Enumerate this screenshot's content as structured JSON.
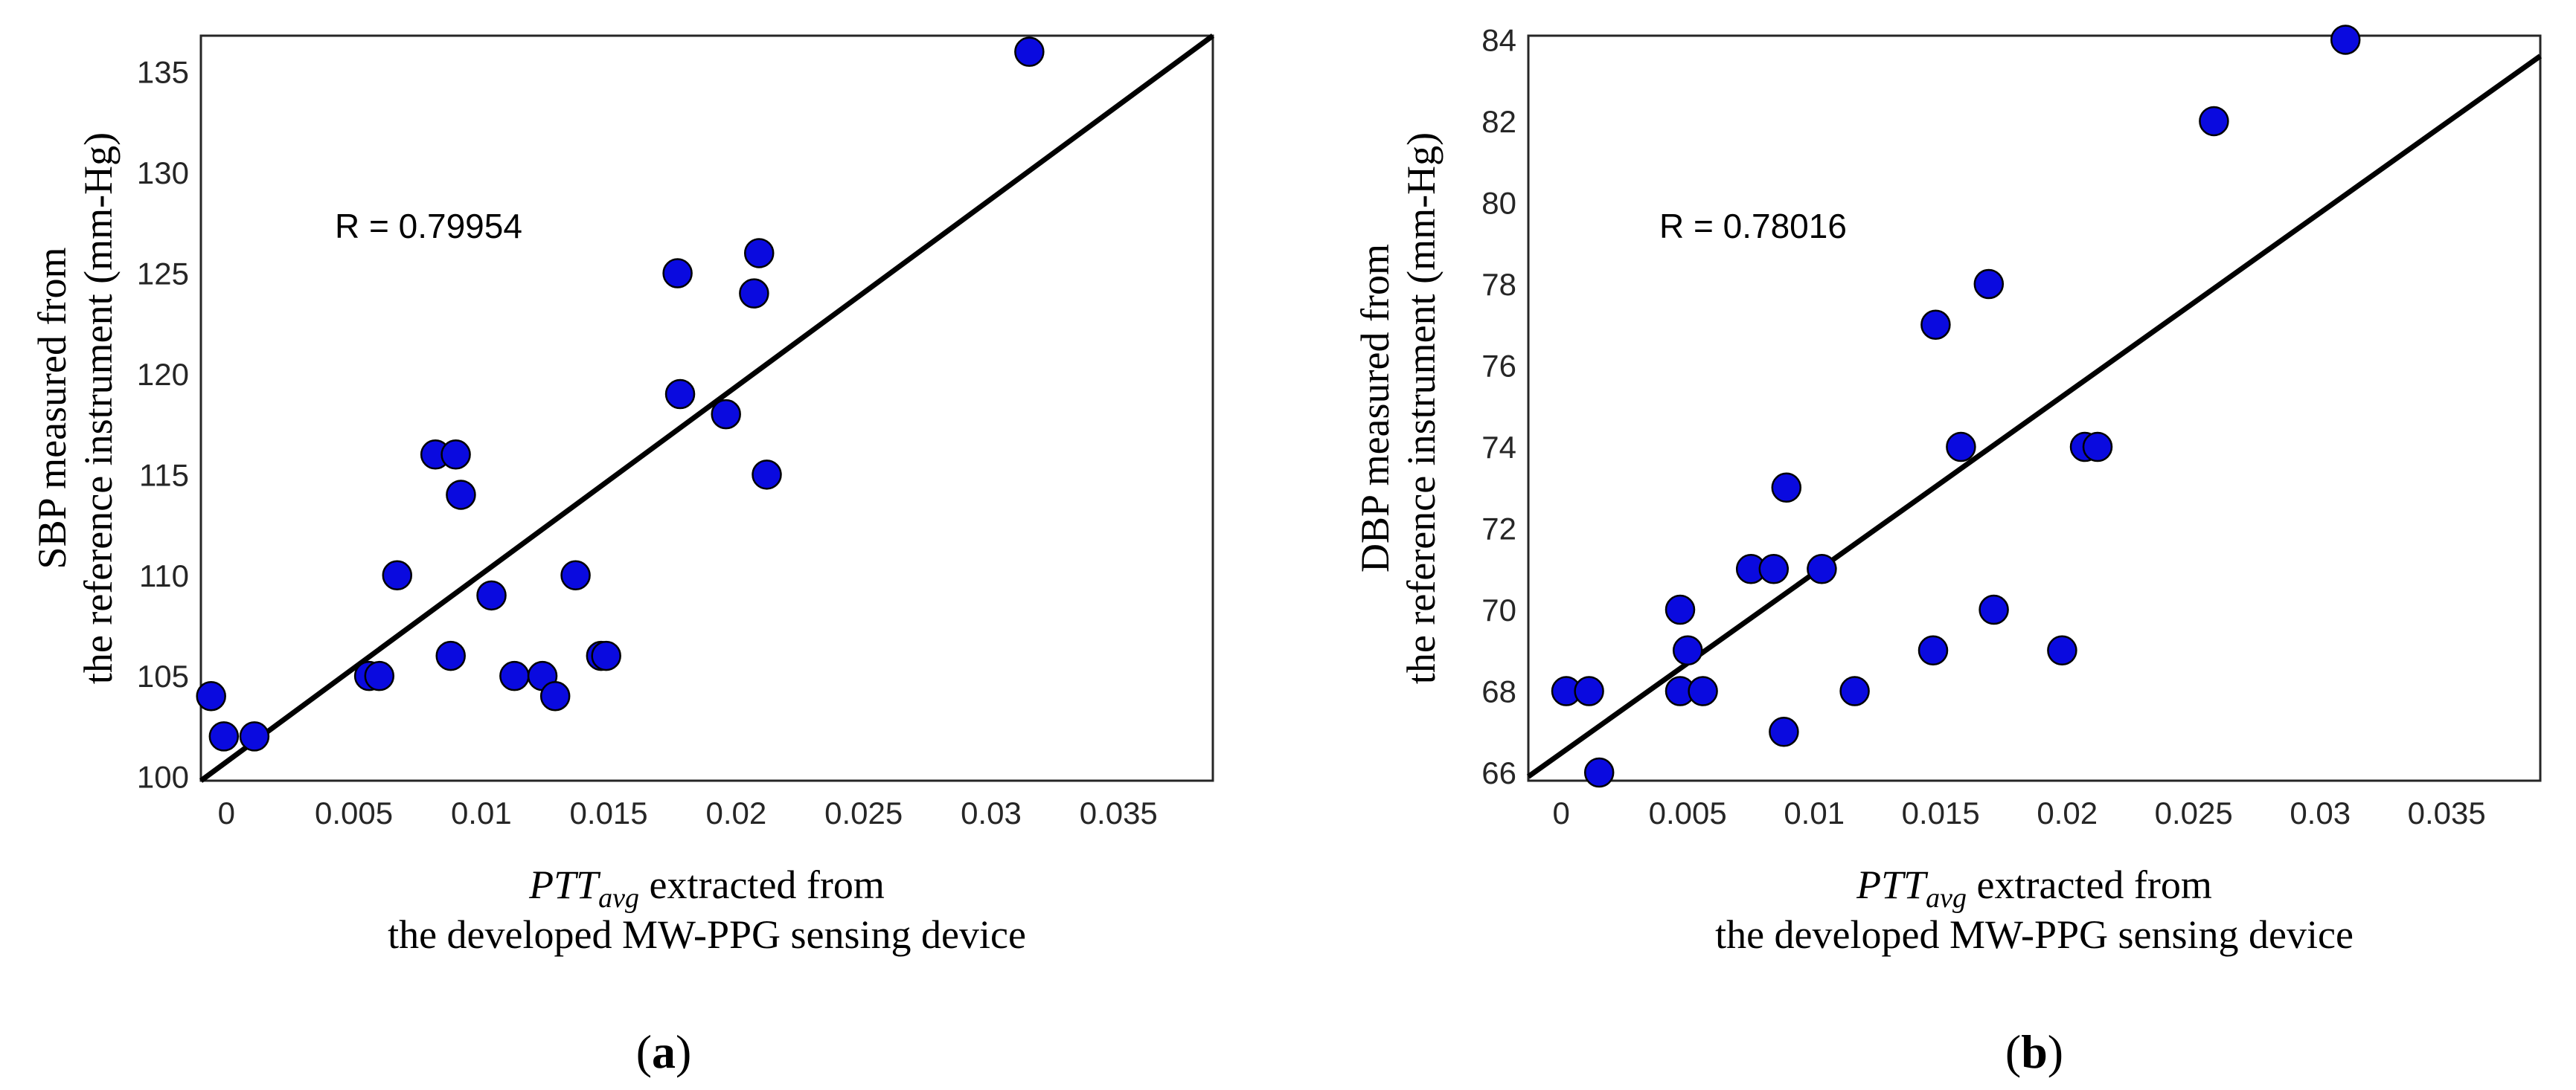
{
  "chart_data": [
    {
      "type": "scatter",
      "panel_label": "a",
      "title": "",
      "annotation": "R = 0.79954",
      "ylabel_line1": "SBP measured from",
      "ylabel_line2": "the reference instrument (mm-Hg)",
      "xlabel_var": "PTT",
      "xlabel_sub": "avg",
      "xlabel_rest": " extracted from",
      "xlabel_line2": "the developed MW-PPG sensing device",
      "xlim": [
        -0.001,
        0.0387
      ],
      "ylim": [
        99.8,
        136.8
      ],
      "xticks": [
        0,
        0.005,
        0.01,
        0.015,
        0.02,
        0.025,
        0.03,
        0.035
      ],
      "xtick_labels": [
        "0",
        "0.005",
        "0.01",
        "0.015",
        "0.02",
        "0.025",
        "0.03",
        "0.035"
      ],
      "yticks": [
        100,
        105,
        110,
        115,
        120,
        125,
        130,
        135
      ],
      "ytick_labels": [
        "100",
        "105",
        "110",
        "115",
        "120",
        "125",
        "130",
        "135"
      ],
      "grid": true,
      "points": [
        {
          "x": -0.0006,
          "y": 104
        },
        {
          "x": -0.0001,
          "y": 102
        },
        {
          "x": 0.0011,
          "y": 102
        },
        {
          "x": 0.0056,
          "y": 105
        },
        {
          "x": 0.006,
          "y": 105
        },
        {
          "x": 0.0067,
          "y": 110
        },
        {
          "x": 0.0082,
          "y": 116
        },
        {
          "x": 0.0088,
          "y": 106
        },
        {
          "x": 0.009,
          "y": 116
        },
        {
          "x": 0.0092,
          "y": 114
        },
        {
          "x": 0.0104,
          "y": 109
        },
        {
          "x": 0.0113,
          "y": 105
        },
        {
          "x": 0.0124,
          "y": 105
        },
        {
          "x": 0.0129,
          "y": 104
        },
        {
          "x": 0.0137,
          "y": 110
        },
        {
          "x": 0.0147,
          "y": 106
        },
        {
          "x": 0.0149,
          "y": 106
        },
        {
          "x": 0.0177,
          "y": 125
        },
        {
          "x": 0.0178,
          "y": 119
        },
        {
          "x": 0.0196,
          "y": 118
        },
        {
          "x": 0.0207,
          "y": 124
        },
        {
          "x": 0.0209,
          "y": 126
        },
        {
          "x": 0.0212,
          "y": 115
        },
        {
          "x": 0.0315,
          "y": 136
        }
      ],
      "fit_line": {
        "x": [
          -0.001,
          0.0387
        ],
        "y": [
          99.8,
          136.8
        ]
      }
    },
    {
      "type": "scatter",
      "panel_label": "b",
      "title": "",
      "annotation": "R = 0.78016",
      "ylabel_line1": "DBP measured from",
      "ylabel_line2": "the reference instrument (mm-Hg)",
      "xlabel_var": "PTT",
      "xlabel_sub": "avg",
      "xlabel_rest": " extracted from",
      "xlabel_line2": "the developed MW-PPG sensing device",
      "xlim": [
        -0.0013,
        0.0387
      ],
      "ylim": [
        65.8,
        84.1
      ],
      "xticks": [
        0,
        0.005,
        0.01,
        0.015,
        0.02,
        0.025,
        0.03,
        0.035
      ],
      "xtick_labels": [
        "0",
        "0.005",
        "0.01",
        "0.015",
        "0.02",
        "0.025",
        "0.03",
        "0.035"
      ],
      "yticks": [
        66,
        68,
        70,
        72,
        74,
        76,
        78,
        80,
        82,
        84
      ],
      "ytick_labels": [
        "66",
        "68",
        "70",
        "72",
        "74",
        "76",
        "78",
        "80",
        "82",
        "84"
      ],
      "grid": true,
      "points": [
        {
          "x": 0.0002,
          "y": 68
        },
        {
          "x": 0.0011,
          "y": 68
        },
        {
          "x": 0.0015,
          "y": 66
        },
        {
          "x": 0.0047,
          "y": 70
        },
        {
          "x": 0.0047,
          "y": 68
        },
        {
          "x": 0.005,
          "y": 69
        },
        {
          "x": 0.0056,
          "y": 68
        },
        {
          "x": 0.0075,
          "y": 71
        },
        {
          "x": 0.0084,
          "y": 71
        },
        {
          "x": 0.0088,
          "y": 67
        },
        {
          "x": 0.0089,
          "y": 73
        },
        {
          "x": 0.0103,
          "y": 71
        },
        {
          "x": 0.0116,
          "y": 68
        },
        {
          "x": 0.0147,
          "y": 69
        },
        {
          "x": 0.0148,
          "y": 77
        },
        {
          "x": 0.0158,
          "y": 74
        },
        {
          "x": 0.0169,
          "y": 78
        },
        {
          "x": 0.0171,
          "y": 70
        },
        {
          "x": 0.0198,
          "y": 69
        },
        {
          "x": 0.0207,
          "y": 74
        },
        {
          "x": 0.0212,
          "y": 74
        },
        {
          "x": 0.0258,
          "y": 82
        },
        {
          "x": 0.031,
          "y": 84
        }
      ],
      "fit_line": {
        "x": [
          -0.0013,
          0.0387
        ],
        "y": [
          65.9,
          83.6
        ]
      }
    }
  ]
}
